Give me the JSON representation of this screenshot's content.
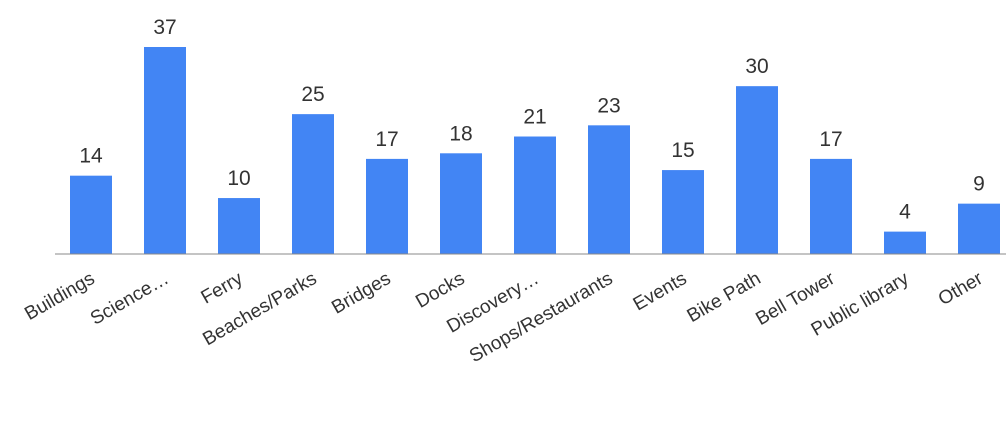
{
  "chart_data": {
    "type": "bar",
    "categories": [
      "Buildings",
      "Science…",
      "Ferry",
      "Beaches/Parks",
      "Bridges",
      "Docks",
      "Discovery…",
      "Shops/Restaurants",
      "Events",
      "Bike Path",
      "Bell Tower",
      "Public library",
      "Other"
    ],
    "values": [
      14,
      37,
      10,
      25,
      17,
      18,
      21,
      23,
      15,
      30,
      17,
      4,
      9
    ],
    "ylim": [
      0,
      37
    ],
    "grid": false,
    "legend": "none",
    "data_labels": true
  },
  "colors": {
    "bar": "#4285f4",
    "axis": "#888888",
    "text": "#333333"
  }
}
